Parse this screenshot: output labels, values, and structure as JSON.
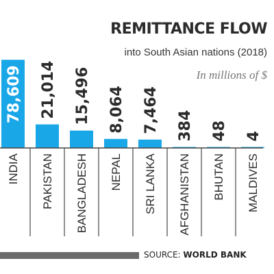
{
  "header": {
    "title": "REMITTANCE FLOW",
    "subtitle": "into South Asian nations (2018)",
    "units": "In millions of $"
  },
  "source": {
    "prefix": "SOURCE:",
    "org": "WORLD BANK"
  },
  "colors": {
    "bar": "#1aa7e8",
    "label": "#2b2b2b",
    "baseline": "#444444",
    "divider": "#555555"
  },
  "chart_data": {
    "type": "bar",
    "title": "REMITTANCE FLOW",
    "subtitle": "into South Asian nations (2018)",
    "ylabel": "In millions of $",
    "xlabel": "",
    "categories": [
      "INDIA",
      "PAKISTAN",
      "BANGLADESH",
      "NEPAL",
      "SRI LANKA",
      "AFGHANISTAN",
      "BHUTAN",
      "MALDIVES"
    ],
    "values": [
      78609,
      21014,
      15496,
      8064,
      7464,
      384,
      48,
      4
    ],
    "value_labels": [
      "78,609",
      "21,014",
      "15,496",
      "8,064",
      "7,464",
      "384",
      "48",
      "4"
    ],
    "ylim": [
      0,
      80000
    ],
    "grid": false,
    "legend": "none"
  }
}
